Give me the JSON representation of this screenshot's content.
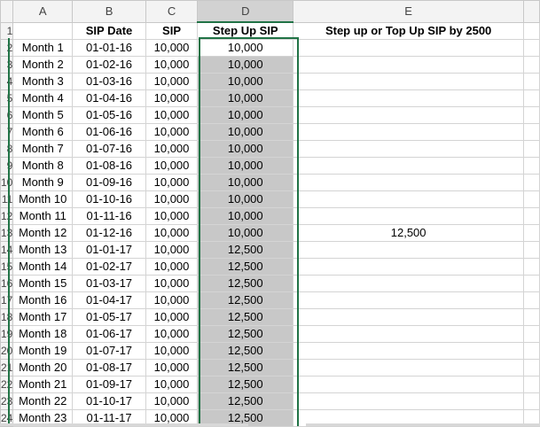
{
  "columns": [
    "A",
    "B",
    "C",
    "D",
    "E"
  ],
  "headers": {
    "b": "SIP Date",
    "c": "SIP",
    "d": "Step Up SIP",
    "e": "Step up or Top Up SIP by 2500"
  },
  "rows": [
    {
      "n": "2",
      "a": "Month 1",
      "b": "01-01-16",
      "c": "10,000",
      "d": "10,000",
      "e": ""
    },
    {
      "n": "3",
      "a": "Month 2",
      "b": "01-02-16",
      "c": "10,000",
      "d": "10,000",
      "e": ""
    },
    {
      "n": "4",
      "a": "Month 3",
      "b": "01-03-16",
      "c": "10,000",
      "d": "10,000",
      "e": ""
    },
    {
      "n": "5",
      "a": "Month 4",
      "b": "01-04-16",
      "c": "10,000",
      "d": "10,000",
      "e": ""
    },
    {
      "n": "6",
      "a": "Month 5",
      "b": "01-05-16",
      "c": "10,000",
      "d": "10,000",
      "e": ""
    },
    {
      "n": "7",
      "a": "Month 6",
      "b": "01-06-16",
      "c": "10,000",
      "d": "10,000",
      "e": ""
    },
    {
      "n": "8",
      "a": "Month 7",
      "b": "01-07-16",
      "c": "10,000",
      "d": "10,000",
      "e": ""
    },
    {
      "n": "9",
      "a": "Month 8",
      "b": "01-08-16",
      "c": "10,000",
      "d": "10,000",
      "e": ""
    },
    {
      "n": "10",
      "a": "Month 9",
      "b": "01-09-16",
      "c": "10,000",
      "d": "10,000",
      "e": ""
    },
    {
      "n": "11",
      "a": "Month 10",
      "b": "01-10-16",
      "c": "10,000",
      "d": "10,000",
      "e": ""
    },
    {
      "n": "12",
      "a": "Month 11",
      "b": "01-11-16",
      "c": "10,000",
      "d": "10,000",
      "e": ""
    },
    {
      "n": "13",
      "a": "Month 12",
      "b": "01-12-16",
      "c": "10,000",
      "d": "10,000",
      "e": "12,500"
    },
    {
      "n": "14",
      "a": "Month 13",
      "b": "01-01-17",
      "c": "10,000",
      "d": "12,500",
      "e": ""
    },
    {
      "n": "15",
      "a": "Month 14",
      "b": "01-02-17",
      "c": "10,000",
      "d": "12,500",
      "e": ""
    },
    {
      "n": "16",
      "a": "Month 15",
      "b": "01-03-17",
      "c": "10,000",
      "d": "12,500",
      "e": ""
    },
    {
      "n": "17",
      "a": "Month 16",
      "b": "01-04-17",
      "c": "10,000",
      "d": "12,500",
      "e": ""
    },
    {
      "n": "18",
      "a": "Month 17",
      "b": "01-05-17",
      "c": "10,000",
      "d": "12,500",
      "e": ""
    },
    {
      "n": "19",
      "a": "Month 18",
      "b": "01-06-17",
      "c": "10,000",
      "d": "12,500",
      "e": ""
    },
    {
      "n": "20",
      "a": "Month 19",
      "b": "01-07-17",
      "c": "10,000",
      "d": "12,500",
      "e": ""
    },
    {
      "n": "21",
      "a": "Month 20",
      "b": "01-08-17",
      "c": "10,000",
      "d": "12,500",
      "e": ""
    },
    {
      "n": "22",
      "a": "Month 21",
      "b": "01-09-17",
      "c": "10,000",
      "d": "12,500",
      "e": ""
    },
    {
      "n": "23",
      "a": "Month 22",
      "b": "01-10-17",
      "c": "10,000",
      "d": "12,500",
      "e": ""
    },
    {
      "n": "24",
      "a": "Month 23",
      "b": "01-11-17",
      "c": "10,000",
      "d": "12,500",
      "e": ""
    }
  ],
  "colors": {
    "selection": "#217346",
    "shade": "#c8c8c8"
  }
}
